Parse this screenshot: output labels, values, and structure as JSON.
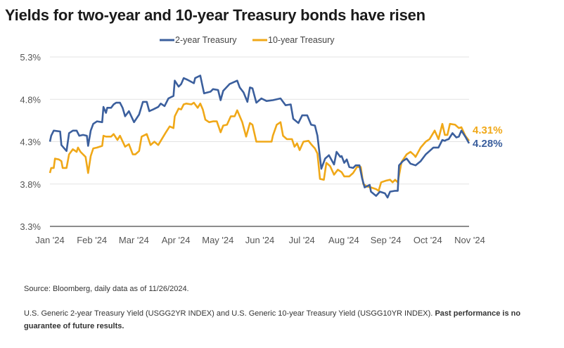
{
  "chart_data": {
    "type": "line",
    "title": "Yields for two-year and 10-year Treasury bonds have risen",
    "xlabel": "",
    "ylabel": "",
    "ylim": [
      3.3,
      5.3
    ],
    "y_ticks": [
      "5.3%",
      "4.8%",
      "4.3%",
      "3.8%",
      "3.3%"
    ],
    "y_tick_values": [
      5.3,
      4.8,
      4.3,
      3.8,
      3.3
    ],
    "x_range": [
      "2024-01-02",
      "2024-11-26"
    ],
    "x_ticks": [
      "Jan '24",
      "Feb '24",
      "Mar '24",
      "Apr '24",
      "May '24",
      "Jun '24",
      "Jul '24",
      "Aug '24",
      "Sep '24",
      "Oct '24",
      "Nov '24"
    ],
    "grid": "horizontal",
    "legend_position": "top-center",
    "series": [
      {
        "name": "2-year Treasury",
        "color": "#3b5f9d",
        "end_label": "4.28%",
        "points": [
          [
            "2024-01-02",
            4.3
          ],
          [
            "2024-01-03",
            4.37
          ],
          [
            "2024-01-05",
            4.43
          ],
          [
            "2024-01-10",
            4.42
          ],
          [
            "2024-01-11",
            4.26
          ],
          [
            "2024-01-15",
            4.19
          ],
          [
            "2024-01-17",
            4.4
          ],
          [
            "2024-01-20",
            4.43
          ],
          [
            "2024-01-23",
            4.43
          ],
          [
            "2024-01-25",
            4.37
          ],
          [
            "2024-01-28",
            4.38
          ],
          [
            "2024-01-31",
            4.37
          ],
          [
            "2024-02-01",
            4.25
          ],
          [
            "2024-02-03",
            4.43
          ],
          [
            "2024-02-05",
            4.51
          ],
          [
            "2024-02-08",
            4.54
          ],
          [
            "2024-02-12",
            4.53
          ],
          [
            "2024-02-13",
            4.71
          ],
          [
            "2024-02-15",
            4.64
          ],
          [
            "2024-02-16",
            4.7
          ],
          [
            "2024-02-19",
            4.7
          ],
          [
            "2024-02-21",
            4.74
          ],
          [
            "2024-02-23",
            4.76
          ],
          [
            "2024-02-26",
            4.76
          ],
          [
            "2024-02-28",
            4.7
          ],
          [
            "2024-03-01",
            4.6
          ],
          [
            "2024-03-04",
            4.66
          ],
          [
            "2024-03-08",
            4.53
          ],
          [
            "2024-03-12",
            4.62
          ],
          [
            "2024-03-15",
            4.77
          ],
          [
            "2024-03-18",
            4.77
          ],
          [
            "2024-03-20",
            4.66
          ],
          [
            "2024-03-23",
            4.68
          ],
          [
            "2024-03-27",
            4.71
          ],
          [
            "2024-03-29",
            4.75
          ],
          [
            "2024-04-01",
            4.72
          ],
          [
            "2024-04-04",
            4.81
          ],
          [
            "2024-04-08",
            4.84
          ],
          [
            "2024-04-09",
            5.02
          ],
          [
            "2024-04-12",
            4.95
          ],
          [
            "2024-04-14",
            4.98
          ],
          [
            "2024-04-16",
            5.05
          ],
          [
            "2024-04-19",
            5.03
          ],
          [
            "2024-04-24",
            4.99
          ],
          [
            "2024-04-25",
            5.05
          ],
          [
            "2024-04-29",
            5.08
          ],
          [
            "2024-05-02",
            4.87
          ],
          [
            "2024-05-07",
            4.89
          ],
          [
            "2024-05-09",
            4.92
          ],
          [
            "2024-05-13",
            4.91
          ],
          [
            "2024-05-15",
            4.79
          ],
          [
            "2024-05-17",
            4.9
          ],
          [
            "2024-05-22",
            4.98
          ],
          [
            "2024-05-28",
            5.02
          ],
          [
            "2024-05-30",
            4.94
          ],
          [
            "2024-06-02",
            4.88
          ],
          [
            "2024-06-05",
            4.77
          ],
          [
            "2024-06-07",
            4.94
          ],
          [
            "2024-06-09",
            4.93
          ],
          [
            "2024-06-12",
            4.76
          ],
          [
            "2024-06-16",
            4.81
          ],
          [
            "2024-06-20",
            4.78
          ],
          [
            "2024-06-25",
            4.79
          ],
          [
            "2024-07-01",
            4.81
          ],
          [
            "2024-07-03",
            4.77
          ],
          [
            "2024-07-05",
            4.73
          ],
          [
            "2024-07-09",
            4.74
          ],
          [
            "2024-07-11",
            4.57
          ],
          [
            "2024-07-15",
            4.52
          ],
          [
            "2024-07-18",
            4.61
          ],
          [
            "2024-07-22",
            4.61
          ],
          [
            "2024-07-25",
            4.5
          ],
          [
            "2024-07-28",
            4.49
          ],
          [
            "2024-07-30",
            4.37
          ],
          [
            "2024-08-02",
            3.98
          ],
          [
            "2024-08-05",
            4.1
          ],
          [
            "2024-08-08",
            4.14
          ],
          [
            "2024-08-12",
            4.03
          ],
          [
            "2024-08-14",
            4.18
          ],
          [
            "2024-08-17",
            4.12
          ],
          [
            "2024-08-18",
            4.13
          ],
          [
            "2024-08-20",
            4.05
          ],
          [
            "2024-08-22",
            4.09
          ],
          [
            "2024-08-24",
            4.0
          ],
          [
            "2024-08-27",
            3.99
          ],
          [
            "2024-08-29",
            4.02
          ],
          [
            "2024-09-01",
            4.02
          ],
          [
            "2024-09-03",
            3.87
          ],
          [
            "2024-09-05",
            3.76
          ],
          [
            "2024-09-09",
            3.79
          ],
          [
            "2024-09-10",
            3.71
          ],
          [
            "2024-09-14",
            3.66
          ],
          [
            "2024-09-17",
            3.71
          ],
          [
            "2024-09-21",
            3.69
          ],
          [
            "2024-09-23",
            3.64
          ],
          [
            "2024-09-25",
            3.71
          ],
          [
            "2024-09-29",
            3.72
          ],
          [
            "2024-10-01",
            3.72
          ],
          [
            "2024-10-02",
            4.02
          ],
          [
            "2024-10-05",
            4.07
          ],
          [
            "2024-10-08",
            4.1
          ],
          [
            "2024-10-11",
            4.04
          ],
          [
            "2024-10-15",
            4.02
          ],
          [
            "2024-10-19",
            4.07
          ],
          [
            "2024-10-23",
            4.15
          ],
          [
            "2024-10-26",
            4.19
          ],
          [
            "2024-10-29",
            4.23
          ],
          [
            "2024-11-02",
            4.23
          ],
          [
            "2024-11-05",
            4.32
          ],
          [
            "2024-11-07",
            4.31
          ],
          [
            "2024-11-08",
            4.32
          ],
          [
            "2024-11-10",
            4.33
          ],
          [
            "2024-11-13",
            4.4
          ],
          [
            "2024-11-16",
            4.35
          ],
          [
            "2024-11-18",
            4.36
          ],
          [
            "2024-11-20",
            4.43
          ],
          [
            "2024-11-23",
            4.36
          ],
          [
            "2024-11-26",
            4.28
          ]
        ]
      },
      {
        "name": "10-year Treasury",
        "color": "#f0a818",
        "end_label": "4.31%",
        "points": [
          [
            "2024-01-02",
            3.93
          ],
          [
            "2024-01-03",
            3.99
          ],
          [
            "2024-01-05",
            3.99
          ],
          [
            "2024-01-06",
            4.1
          ],
          [
            "2024-01-09",
            4.09
          ],
          [
            "2024-01-11",
            4.07
          ],
          [
            "2024-01-12",
            3.99
          ],
          [
            "2024-01-15",
            3.99
          ],
          [
            "2024-01-17",
            4.15
          ],
          [
            "2024-01-20",
            4.21
          ],
          [
            "2024-01-23",
            4.18
          ],
          [
            "2024-01-24",
            4.23
          ],
          [
            "2024-01-26",
            4.18
          ],
          [
            "2024-01-30",
            4.12
          ],
          [
            "2024-02-01",
            3.93
          ],
          [
            "2024-02-03",
            4.13
          ],
          [
            "2024-02-05",
            4.22
          ],
          [
            "2024-02-08",
            4.23
          ],
          [
            "2024-02-12",
            4.25
          ],
          [
            "2024-02-13",
            4.37
          ],
          [
            "2024-02-15",
            4.36
          ],
          [
            "2024-02-19",
            4.36
          ],
          [
            "2024-02-21",
            4.39
          ],
          [
            "2024-02-24",
            4.32
          ],
          [
            "2024-02-26",
            4.37
          ],
          [
            "2024-03-01",
            4.24
          ],
          [
            "2024-03-04",
            4.27
          ],
          [
            "2024-03-07",
            4.15
          ],
          [
            "2024-03-09",
            4.15
          ],
          [
            "2024-03-12",
            4.19
          ],
          [
            "2024-03-14",
            4.36
          ],
          [
            "2024-03-18",
            4.39
          ],
          [
            "2024-03-21",
            4.26
          ],
          [
            "2024-03-24",
            4.3
          ],
          [
            "2024-03-27",
            4.26
          ],
          [
            "2024-03-31",
            4.36
          ],
          [
            "2024-04-02",
            4.41
          ],
          [
            "2024-04-05",
            4.48
          ],
          [
            "2024-04-08",
            4.46
          ],
          [
            "2024-04-09",
            4.6
          ],
          [
            "2024-04-12",
            4.69
          ],
          [
            "2024-04-14",
            4.68
          ],
          [
            "2024-04-16",
            4.74
          ],
          [
            "2024-04-18",
            4.75
          ],
          [
            "2024-04-22",
            4.74
          ],
          [
            "2024-04-24",
            4.76
          ],
          [
            "2024-04-27",
            4.7
          ],
          [
            "2024-04-29",
            4.75
          ],
          [
            "2024-05-01",
            4.68
          ],
          [
            "2024-05-03",
            4.56
          ],
          [
            "2024-05-06",
            4.53
          ],
          [
            "2024-05-09",
            4.54
          ],
          [
            "2024-05-12",
            4.54
          ],
          [
            "2024-05-15",
            4.41
          ],
          [
            "2024-05-17",
            4.49
          ],
          [
            "2024-05-20",
            4.5
          ],
          [
            "2024-05-23",
            4.6
          ],
          [
            "2024-05-26",
            4.6
          ],
          [
            "2024-05-28",
            4.67
          ],
          [
            "2024-06-01",
            4.53
          ],
          [
            "2024-06-04",
            4.36
          ],
          [
            "2024-06-07",
            4.52
          ],
          [
            "2024-06-09",
            4.5
          ],
          [
            "2024-06-12",
            4.3
          ],
          [
            "2024-06-16",
            4.3
          ],
          [
            "2024-06-20",
            4.3
          ],
          [
            "2024-06-24",
            4.3
          ],
          [
            "2024-06-25",
            4.37
          ],
          [
            "2024-06-28",
            4.5
          ],
          [
            "2024-07-01",
            4.53
          ],
          [
            "2024-07-03",
            4.37
          ],
          [
            "2024-07-06",
            4.33
          ],
          [
            "2024-07-10",
            4.33
          ],
          [
            "2024-07-12",
            4.24
          ],
          [
            "2024-07-14",
            4.28
          ],
          [
            "2024-07-16",
            4.2
          ],
          [
            "2024-07-19",
            4.3
          ],
          [
            "2024-07-23",
            4.31
          ],
          [
            "2024-07-25",
            4.27
          ],
          [
            "2024-07-28",
            4.22
          ],
          [
            "2024-07-30",
            4.16
          ],
          [
            "2024-08-01",
            3.86
          ],
          [
            "2024-08-04",
            3.85
          ],
          [
            "2024-08-06",
            4.05
          ],
          [
            "2024-08-09",
            4.01
          ],
          [
            "2024-08-12",
            3.91
          ],
          [
            "2024-08-15",
            3.97
          ],
          [
            "2024-08-18",
            3.94
          ],
          [
            "2024-08-20",
            3.89
          ],
          [
            "2024-08-24",
            3.89
          ],
          [
            "2024-08-27",
            3.93
          ],
          [
            "2024-08-30",
            4.0
          ],
          [
            "2024-09-02",
            4.0
          ],
          [
            "2024-09-04",
            3.8
          ],
          [
            "2024-09-07",
            3.77
          ],
          [
            "2024-09-10",
            3.76
          ],
          [
            "2024-09-14",
            3.74
          ],
          [
            "2024-09-16",
            3.72
          ],
          [
            "2024-09-18",
            3.82
          ],
          [
            "2024-09-22",
            3.84
          ],
          [
            "2024-09-25",
            3.85
          ],
          [
            "2024-09-27",
            3.82
          ],
          [
            "2024-09-29",
            3.85
          ],
          [
            "2024-10-01",
            3.82
          ],
          [
            "2024-10-04",
            4.06
          ],
          [
            "2024-10-08",
            4.15
          ],
          [
            "2024-10-11",
            4.18
          ],
          [
            "2024-10-14",
            4.14
          ],
          [
            "2024-10-15",
            4.12
          ],
          [
            "2024-10-19",
            4.23
          ],
          [
            "2024-10-23",
            4.3
          ],
          [
            "2024-10-26",
            4.33
          ],
          [
            "2024-10-30",
            4.43
          ],
          [
            "2024-11-02",
            4.33
          ],
          [
            "2024-11-05",
            4.51
          ],
          [
            "2024-11-07",
            4.38
          ],
          [
            "2024-11-09",
            4.38
          ],
          [
            "2024-11-11",
            4.51
          ],
          [
            "2024-11-15",
            4.5
          ],
          [
            "2024-11-18",
            4.46
          ],
          [
            "2024-11-20",
            4.47
          ],
          [
            "2024-11-23",
            4.37
          ],
          [
            "2024-11-26",
            4.31
          ]
        ]
      }
    ]
  },
  "footer": {
    "source": "Source: Bloomberg, daily data as of 11/26/2024.",
    "note": "U.S. Generic 2-year Treasury Yield (USGG2YR INDEX) and U.S. Generic 10-year Treasury Yield (USGG10YR INDEX). ",
    "disclaimer": "Past performance is no guarantee of future results."
  }
}
